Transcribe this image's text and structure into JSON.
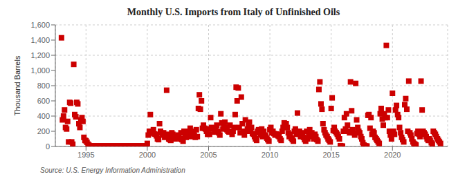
{
  "chart_data": {
    "type": "scatter",
    "title": "Monthly U.S. Imports from Italy of Unfinished Oils",
    "ylabel": "Thousand Barrels",
    "annotations": [
      "Source: U.S. Energy Information Administration"
    ],
    "color": "#cc0000",
    "marker": "square",
    "grid": true,
    "xlim": [
      1992.5,
      2024.5
    ],
    "xticks": [
      1995,
      2000,
      2005,
      2010,
      2015,
      2020
    ],
    "ylim": [
      0,
      1600
    ],
    "yticks": [
      0,
      200,
      400,
      600,
      800,
      {
        "value": 1000,
        "label": "1,000"
      },
      {
        "value": 1200,
        "label": "1,200"
      },
      {
        "value": 1400,
        "label": "1,400"
      },
      {
        "value": 1600,
        "label": "1,600"
      }
    ],
    "x": [
      1993.0,
      1993.08,
      1993.17,
      1993.25,
      1993.33,
      1993.42,
      1993.5,
      1993.58,
      1993.67,
      1993.75,
      1993.83,
      1993.92,
      1994.0,
      1994.08,
      1994.17,
      1994.25,
      1994.33,
      1994.42,
      1994.5,
      1994.58,
      1994.67,
      1994.75,
      1994.83,
      1994.92,
      1995.0,
      1995.08,
      1995.17,
      1995.25,
      1995.33,
      1995.42,
      1995.5,
      1995.58,
      1995.67,
      1995.75,
      1995.83,
      1995.92,
      1996.0,
      1996.08,
      1996.17,
      1996.25,
      1996.33,
      1996.42,
      1996.5,
      1996.58,
      1996.67,
      1996.75,
      1996.83,
      1996.92,
      1997.0,
      1997.08,
      1997.17,
      1997.25,
      1997.33,
      1997.42,
      1997.5,
      1997.58,
      1997.67,
      1997.75,
      1997.83,
      1997.92,
      1998.0,
      1998.08,
      1998.17,
      1998.25,
      1998.33,
      1998.42,
      1998.5,
      1998.58,
      1998.67,
      1998.75,
      1998.83,
      1998.92,
      1999.0,
      1999.08,
      1999.17,
      1999.25,
      1999.33,
      1999.42,
      1999.5,
      1999.58,
      1999.67,
      1999.75,
      1999.83,
      1999.92,
      2000.0,
      2000.08,
      2000.17,
      2000.25,
      2000.33,
      2000.42,
      2000.5,
      2000.58,
      2000.67,
      2000.75,
      2000.83,
      2000.92,
      2001.0,
      2001.08,
      2001.17,
      2001.25,
      2001.33,
      2001.42,
      2001.5,
      2001.58,
      2001.67,
      2001.75,
      2001.83,
      2001.92,
      2002.0,
      2002.08,
      2002.17,
      2002.25,
      2002.33,
      2002.42,
      2002.5,
      2002.58,
      2002.67,
      2002.75,
      2002.83,
      2002.92,
      2003.0,
      2003.08,
      2003.17,
      2003.25,
      2003.33,
      2003.42,
      2003.5,
      2003.58,
      2003.67,
      2003.75,
      2003.83,
      2003.92,
      2004.0,
      2004.08,
      2004.17,
      2004.25,
      2004.33,
      2004.42,
      2004.5,
      2004.58,
      2004.67,
      2004.75,
      2004.83,
      2004.92,
      2005.0,
      2005.08,
      2005.17,
      2005.25,
      2005.33,
      2005.42,
      2005.5,
      2005.58,
      2005.67,
      2005.75,
      2005.83,
      2005.92,
      2006.0,
      2006.08,
      2006.17,
      2006.25,
      2006.33,
      2006.42,
      2006.5,
      2006.58,
      2006.67,
      2006.75,
      2006.83,
      2006.92,
      2007.0,
      2007.08,
      2007.17,
      2007.25,
      2007.33,
      2007.42,
      2007.5,
      2007.58,
      2007.67,
      2007.75,
      2007.83,
      2007.92,
      2008.0,
      2008.08,
      2008.17,
      2008.25,
      2008.33,
      2008.42,
      2008.5,
      2008.58,
      2008.67,
      2008.75,
      2008.83,
      2008.92,
      2009.0,
      2009.08,
      2009.17,
      2009.25,
      2009.33,
      2009.42,
      2009.5,
      2009.58,
      2009.67,
      2009.75,
      2009.83,
      2009.92,
      2010.0,
      2010.08,
      2010.17,
      2010.25,
      2010.33,
      2010.42,
      2010.5,
      2010.58,
      2010.67,
      2010.75,
      2010.83,
      2010.92,
      2011.0,
      2011.08,
      2011.17,
      2011.25,
      2011.33,
      2011.42,
      2011.5,
      2011.58,
      2011.67,
      2011.75,
      2011.83,
      2011.92,
      2012.0,
      2012.08,
      2012.17,
      2012.25,
      2012.33,
      2012.42,
      2012.5,
      2012.58,
      2012.67,
      2012.75,
      2012.83,
      2012.92,
      2013.0,
      2013.08,
      2013.17,
      2013.25,
      2013.33,
      2013.42,
      2013.5,
      2013.58,
      2013.67,
      2013.75,
      2013.83,
      2013.92,
      2014.0,
      2014.08,
      2014.17,
      2014.25,
      2014.33,
      2014.42,
      2014.5,
      2014.58,
      2014.67,
      2014.75,
      2014.83,
      2014.92,
      2015.0,
      2015.08,
      2015.17,
      2015.25,
      2015.33,
      2015.42,
      2015.5,
      2015.58,
      2015.67,
      2015.75,
      2015.83,
      2015.92,
      2016.0,
      2016.08,
      2016.17,
      2016.25,
      2016.33,
      2016.42,
      2016.5,
      2016.58,
      2016.67,
      2016.75,
      2016.83,
      2016.92,
      2017.0,
      2017.08,
      2017.17,
      2017.25,
      2017.33,
      2017.42,
      2017.5,
      2017.58,
      2017.67,
      2017.75,
      2017.83,
      2017.92,
      2018.0,
      2018.08,
      2018.17,
      2018.25,
      2018.33,
      2018.42,
      2018.5,
      2018.58,
      2018.67,
      2018.75,
      2018.83,
      2018.92,
      2019.0,
      2019.08,
      2019.17,
      2019.25,
      2019.33,
      2019.42,
      2019.5,
      2019.58,
      2019.67,
      2019.75,
      2019.83,
      2019.92,
      2020.0,
      2020.08,
      2020.17,
      2020.25,
      2020.33,
      2020.42,
      2020.5,
      2020.58,
      2020.67,
      2020.75,
      2020.83,
      2020.92,
      2021.0,
      2021.08,
      2021.17,
      2021.25,
      2021.33,
      2021.42,
      2021.5,
      2021.58,
      2021.67,
      2021.75,
      2021.83,
      2021.92,
      2022.0,
      2022.08,
      2022.17,
      2022.25,
      2022.33,
      2022.42,
      2022.5,
      2022.58,
      2022.67,
      2022.75,
      2022.83,
      2022.92,
      2023.0,
      2023.08,
      2023.17,
      2023.25,
      2023.33,
      2023.42,
      2023.5,
      2023.58,
      2023.67,
      2023.75,
      2023.83,
      2023.92
    ],
    "values": [
      1430,
      350,
      400,
      480,
      250,
      230,
      330,
      60,
      580,
      570,
      60,
      30,
      1080,
      420,
      390,
      580,
      560,
      300,
      250,
      350,
      380,
      330,
      120,
      80,
      75,
      55,
      30,
      15,
      5,
      5,
      5,
      5,
      5,
      5,
      5,
      5,
      5,
      5,
      5,
      5,
      5,
      5,
      5,
      5,
      5,
      5,
      5,
      5,
      5,
      5,
      5,
      5,
      5,
      5,
      5,
      5,
      5,
      5,
      5,
      5,
      5,
      5,
      5,
      5,
      5,
      5,
      5,
      5,
      5,
      5,
      5,
      5,
      5,
      5,
      5,
      5,
      5,
      5,
      5,
      5,
      5,
      5,
      5,
      5,
      40,
      150,
      200,
      420,
      200,
      175,
      220,
      165,
      160,
      140,
      100,
      90,
      300,
      200,
      175,
      150,
      180,
      120,
      140,
      740,
      160,
      100,
      90,
      80,
      180,
      160,
      120,
      100,
      130,
      115,
      150,
      140,
      100,
      180,
      90,
      70,
      200,
      130,
      120,
      175,
      140,
      200,
      240,
      130,
      200,
      180,
      150,
      120,
      220,
      130,
      500,
      680,
      490,
      600,
      240,
      280,
      240,
      230,
      200,
      160,
      230,
      160,
      380,
      250,
      230,
      240,
      190,
      220,
      280,
      200,
      180,
      150,
      430,
      310,
      230,
      260,
      320,
      250,
      220,
      200,
      190,
      280,
      200,
      160,
      200,
      250,
      420,
      780,
      600,
      770,
      250,
      180,
      650,
      300,
      200,
      150,
      350,
      200,
      230,
      280,
      320,
      200,
      250,
      170,
      160,
      130,
      100,
      80,
      200,
      220,
      180,
      150,
      230,
      130,
      200,
      150,
      140,
      110,
      90,
      70,
      220,
      250,
      180,
      200,
      170,
      150,
      165,
      160,
      140,
      130,
      100,
      80,
      200,
      250,
      310,
      290,
      300,
      250,
      180,
      130,
      160,
      110,
      90,
      70,
      200,
      230,
      160,
      440,
      180,
      200,
      130,
      140,
      180,
      120,
      90,
      70,
      200,
      100,
      130,
      220,
      160,
      180,
      150,
      100,
      160,
      130,
      90,
      70,
      750,
      850,
      560,
      490,
      300,
      220,
      180,
      150,
      130,
      100,
      80,
      60,
      500,
      640,
      210,
      250,
      200,
      180,
      160,
      130,
      100,
      10,
      5,
      5,
      200,
      380,
      230,
      430,
      280,
      200,
      180,
      850,
      470,
      220,
      180,
      150,
      830,
      350,
      250,
      200,
      180,
      130,
      100,
      50,
      20,
      10,
      5,
      5,
      410,
      420,
      240,
      380,
      160,
      200,
      180,
      120,
      100,
      80,
      60,
      40,
      430,
      500,
      360,
      280,
      430,
      380,
      1330,
      380,
      480,
      200,
      150,
      100,
      700,
      200,
      160,
      480,
      540,
      420,
      380,
      250,
      180,
      120,
      90,
      60,
      550,
      630,
      490,
      200,
      860,
      180,
      150,
      100,
      60,
      40,
      30,
      20,
      170,
      200,
      160,
      130,
      860,
      480,
      200,
      180,
      160,
      130,
      100,
      80,
      100,
      80,
      50,
      30,
      200,
      180,
      160,
      130,
      100,
      80,
      60,
      40
    ]
  }
}
